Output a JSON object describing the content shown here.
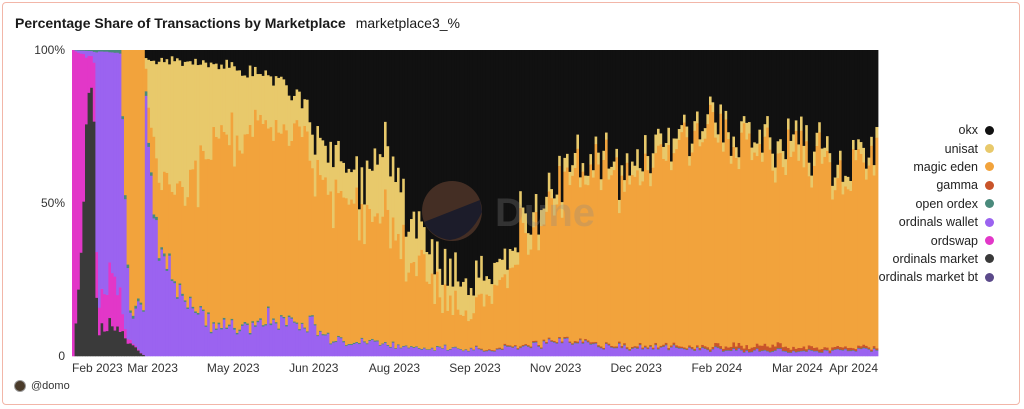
{
  "header": {
    "title": "Percentage Share of Transactions by Marketplace",
    "subtitle": "marketplace3_%"
  },
  "credit": {
    "text": "@domo"
  },
  "watermark": {
    "text": "Dune"
  },
  "chart_data": {
    "type": "bar",
    "stacked": true,
    "normalized": true,
    "grid": false,
    "legend_position": "right",
    "yticks": [
      "0",
      "50%",
      "100%"
    ],
    "ylim": [
      0,
      100
    ],
    "xticks": [
      "Feb 2023",
      "Mar 2023",
      "May 2023",
      "Jun 2023",
      "Aug 2023",
      "Sep 2023",
      "Nov 2023",
      "Dec 2023",
      "Feb 2024",
      "Mar 2024",
      "Apr 2024"
    ],
    "series": [
      {
        "name": "okx",
        "color": "#111111"
      },
      {
        "name": "unisat",
        "color": "#e8c96b"
      },
      {
        "name": "magic eden",
        "color": "#f2a33c"
      },
      {
        "name": "gamma",
        "color": "#c9542a"
      },
      {
        "name": "open ordex",
        "color": "#4a8a7c"
      },
      {
        "name": "ordinals wallet",
        "color": "#9b63f0"
      },
      {
        "name": "ordswap",
        "color": "#e237c8"
      },
      {
        "name": "ordinals market",
        "color": "#3a3a3a"
      },
      {
        "name": "ordinals market bt",
        "color": "#5b4a8a"
      }
    ],
    "anchors": {
      "okx": [
        [
          0,
          0
        ],
        [
          27,
          0
        ],
        [
          28,
          1
        ],
        [
          40,
          3
        ],
        [
          60,
          5
        ],
        [
          80,
          10
        ],
        [
          90,
          22
        ],
        [
          100,
          35
        ],
        [
          110,
          40
        ],
        [
          120,
          30
        ],
        [
          130,
          55
        ],
        [
          140,
          70
        ],
        [
          150,
          75
        ],
        [
          160,
          70
        ],
        [
          170,
          60
        ],
        [
          180,
          50
        ],
        [
          190,
          40
        ],
        [
          200,
          30
        ],
        [
          210,
          42
        ],
        [
          220,
          35
        ],
        [
          230,
          30
        ],
        [
          240,
          22
        ],
        [
          250,
          25
        ],
        [
          265,
          28
        ],
        [
          280,
          30
        ],
        [
          295,
          35
        ],
        [
          310,
          32
        ]
      ],
      "unisat": [
        [
          0,
          0
        ],
        [
          27,
          0
        ],
        [
          28,
          1
        ],
        [
          40,
          45
        ],
        [
          55,
          25
        ],
        [
          70,
          18
        ],
        [
          90,
          10
        ],
        [
          100,
          15
        ],
        [
          110,
          8
        ],
        [
          120,
          25
        ],
        [
          130,
          12
        ],
        [
          140,
          10
        ],
        [
          150,
          10
        ],
        [
          160,
          8
        ],
        [
          170,
          6
        ],
        [
          180,
          5
        ],
        [
          190,
          4
        ],
        [
          200,
          3
        ],
        [
          210,
          3
        ],
        [
          220,
          5
        ],
        [
          230,
          4
        ],
        [
          240,
          3
        ],
        [
          250,
          3
        ],
        [
          265,
          4
        ],
        [
          280,
          5
        ],
        [
          295,
          4
        ],
        [
          310,
          3
        ]
      ],
      "magic eden": [
        [
          0,
          0
        ],
        [
          18,
          0
        ],
        [
          22,
          85
        ],
        [
          25,
          75
        ],
        [
          27,
          90
        ],
        [
          28,
          2
        ],
        [
          40,
          28
        ],
        [
          55,
          58
        ],
        [
          70,
          62
        ],
        [
          90,
          60
        ],
        [
          100,
          45
        ],
        [
          110,
          42
        ],
        [
          120,
          38
        ],
        [
          130,
          30
        ],
        [
          140,
          17
        ],
        [
          150,
          12
        ],
        [
          160,
          18
        ],
        [
          170,
          30
        ],
        [
          180,
          42
        ],
        [
          190,
          54
        ],
        [
          200,
          64
        ],
        [
          210,
          52
        ],
        [
          220,
          58
        ],
        [
          230,
          64
        ],
        [
          240,
          73
        ],
        [
          250,
          70
        ],
        [
          265,
          68
        ],
        [
          280,
          64
        ],
        [
          295,
          60
        ],
        [
          310,
          62
        ]
      ],
      "gamma": [
        [
          0,
          0
        ],
        [
          150,
          0
        ],
        [
          160,
          0.3
        ],
        [
          240,
          0.5
        ],
        [
          250,
          1
        ],
        [
          265,
          1.5
        ],
        [
          280,
          1
        ],
        [
          310,
          0.6
        ]
      ],
      "open ordex": [
        [
          0,
          0
        ],
        [
          24,
          1
        ],
        [
          28,
          0.5
        ],
        [
          60,
          0.5
        ],
        [
          110,
          0.3
        ],
        [
          150,
          0.2
        ],
        [
          310,
          0.2
        ]
      ],
      "ordinals wallet": [
        [
          0,
          0
        ],
        [
          8,
          3
        ],
        [
          10,
          80
        ],
        [
          18,
          70
        ],
        [
          22,
          10
        ],
        [
          28,
          22
        ],
        [
          40,
          18
        ],
        [
          55,
          10
        ],
        [
          70,
          10
        ],
        [
          90,
          12
        ],
        [
          100,
          5
        ],
        [
          110,
          4
        ],
        [
          130,
          3
        ],
        [
          150,
          2
        ],
        [
          170,
          3
        ],
        [
          190,
          5
        ],
        [
          210,
          3
        ],
        [
          250,
          2
        ],
        [
          280,
          1.5
        ],
        [
          310,
          2
        ]
      ],
      "ordswap": [
        [
          0,
          100
        ],
        [
          3,
          75
        ],
        [
          6,
          12
        ],
        [
          10,
          8
        ],
        [
          15,
          20
        ],
        [
          20,
          2
        ],
        [
          23,
          0.5
        ],
        [
          28,
          0
        ],
        [
          310,
          0
        ]
      ],
      "ordinals market": [
        [
          0,
          0
        ],
        [
          2,
          20
        ],
        [
          4,
          70
        ],
        [
          7,
          78
        ],
        [
          9,
          8
        ],
        [
          14,
          12
        ],
        [
          18,
          6
        ],
        [
          23,
          3
        ],
        [
          28,
          0
        ],
        [
          310,
          0
        ]
      ],
      "ordinals market bt": [
        [
          0,
          0
        ],
        [
          310,
          0
        ]
      ]
    },
    "n_bars": 310
  }
}
